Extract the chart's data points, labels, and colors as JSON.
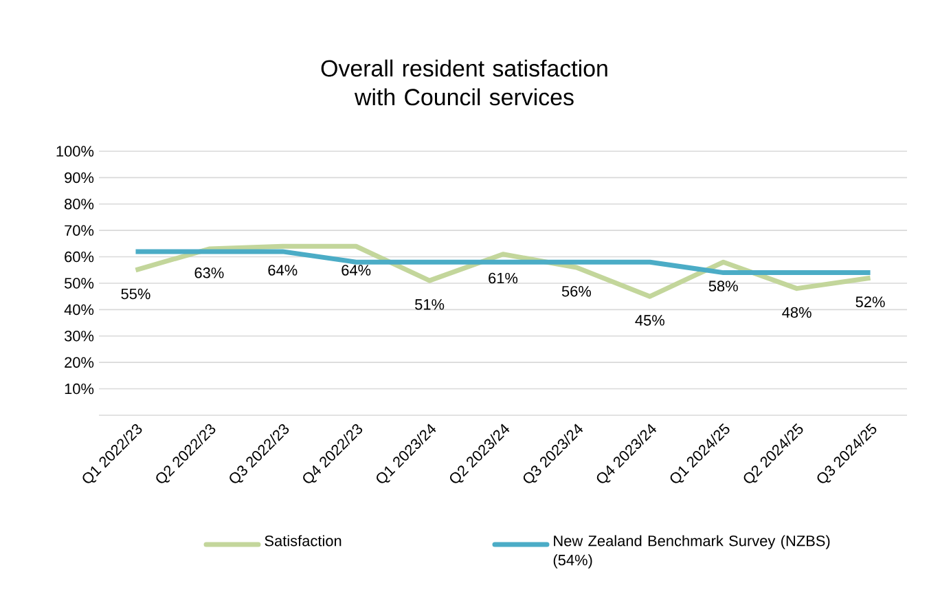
{
  "chart_data": {
    "type": "line",
    "title": "Overall resident satisfaction with Council services",
    "categories": [
      "Q1 2022/23",
      "Q2 2022/23",
      "Q3 2022/23",
      "Q4 2022/23",
      "Q1 2023/24",
      "Q2 2023/24",
      "Q3 2023/24",
      "Q4 2023/24",
      "Q1 2024/25",
      "Q2 2024/25",
      "Q3 2024/25"
    ],
    "series": [
      {
        "name": "Satisfaction",
        "color": "#c3d69b",
        "values": [
          55,
          63,
          64,
          64,
          51,
          61,
          56,
          45,
          58,
          48,
          52
        ],
        "value_labels": [
          "55%",
          "63%",
          "64%",
          "64%",
          "51%",
          "61%",
          "56%",
          "45%",
          "58%",
          "48%",
          "52%"
        ]
      },
      {
        "name": "New Zealand Benchmark Survey (NZBS) (54%)",
        "color": "#4bacc6",
        "values": [
          62,
          62,
          62,
          58,
          58,
          58,
          58,
          58,
          54,
          54,
          54
        ]
      }
    ],
    "ylim": [
      0,
      100
    ],
    "yticks": [
      {
        "value": 0,
        "label": null
      },
      {
        "value": 10,
        "label": "10%"
      },
      {
        "value": 20,
        "label": "20%"
      },
      {
        "value": 30,
        "label": "30%"
      },
      {
        "value": 40,
        "label": "40%"
      },
      {
        "value": 50,
        "label": "50%"
      },
      {
        "value": 60,
        "label": "60%"
      },
      {
        "value": 70,
        "label": "70%"
      },
      {
        "value": 80,
        "label": "80%"
      },
      {
        "value": 90,
        "label": "90%"
      },
      {
        "value": 100,
        "label": "100%"
      }
    ],
    "grid": "y",
    "legend": "bottom",
    "marker": "none",
    "line_style": "solid"
  }
}
